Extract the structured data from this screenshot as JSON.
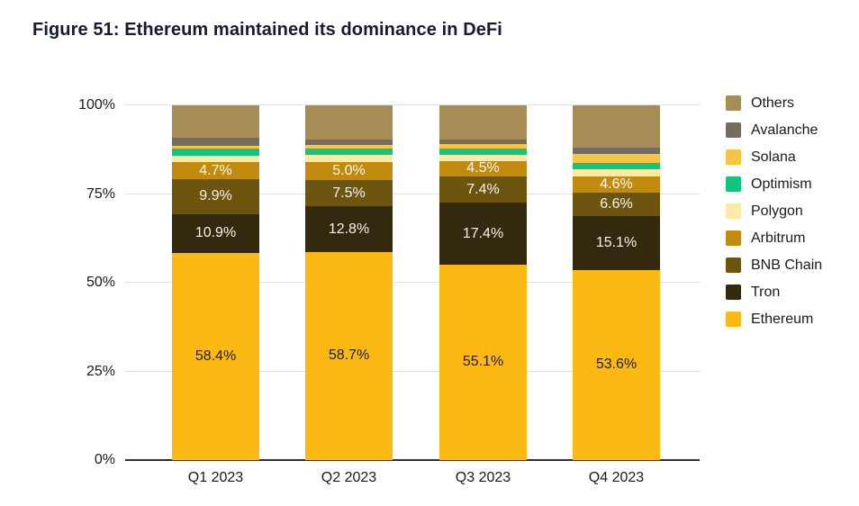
{
  "title": "Figure 51: Ethereum maintained its dominance in DeFi",
  "colors": {
    "title_text": "#161a2e",
    "gridline": "#e1e1e1",
    "axis_baseline": "#2f2f2f",
    "tick_text": "#191919",
    "background": "#ffffff"
  },
  "chart_data": {
    "type": "bar",
    "stacked": true,
    "unit": "%",
    "title": "Figure 51: Ethereum maintained its dominance in DeFi",
    "categories": [
      "Q1 2023",
      "Q2 2023",
      "Q3 2023",
      "Q4 2023"
    ],
    "series": [
      {
        "name": "Ethereum",
        "color": "#fcb813",
        "label_color": "#1f1f1f",
        "show_labels": true,
        "values": [
          58.4,
          58.7,
          55.1,
          53.6
        ],
        "labels": [
          "58.4%",
          "58.7%",
          "55.1%",
          "53.6%"
        ]
      },
      {
        "name": "Tron",
        "color": "#33290f",
        "label_color": "#f6f3ed",
        "show_labels": true,
        "values": [
          10.9,
          12.8,
          17.4,
          15.1
        ],
        "labels": [
          "10.9%",
          "12.8%",
          "17.4%",
          "15.1%"
        ]
      },
      {
        "name": "BNB Chain",
        "color": "#6e550f",
        "label_color": "#f6f3ed",
        "show_labels": true,
        "values": [
          9.9,
          7.5,
          7.4,
          6.6
        ],
        "labels": [
          "9.9%",
          "7.5%",
          "7.4%",
          "6.6%"
        ]
      },
      {
        "name": "Arbitrum",
        "color": "#c28a0e",
        "label_color": "#fdf9f2",
        "show_labels": true,
        "values": [
          4.7,
          5.0,
          4.5,
          4.6
        ],
        "labels": [
          "4.7%",
          "5.0%",
          "4.5%",
          "4.6%"
        ]
      },
      {
        "name": "Polygon",
        "color": "#fbe9a6",
        "show_labels": false,
        "values": [
          2.0,
          2.0,
          1.6,
          2.0
        ]
      },
      {
        "name": "Optimism",
        "color": "#12c57e",
        "show_labels": false,
        "values": [
          1.9,
          1.8,
          1.8,
          1.9
        ]
      },
      {
        "name": "Solana",
        "color": "#f8c443",
        "show_labels": false,
        "values": [
          0.9,
          1.0,
          1.2,
          2.4
        ]
      },
      {
        "name": "Avalanche",
        "color": "#746c5f",
        "show_labels": false,
        "values": [
          2.2,
          1.6,
          1.5,
          1.9
        ]
      },
      {
        "name": "Others",
        "color": "#a68c55",
        "show_labels": false,
        "values": [
          9.1,
          9.6,
          9.5,
          11.9
        ]
      }
    ],
    "y_ticks": [
      {
        "label": "0%",
        "value": 0
      },
      {
        "label": "25%",
        "value": 25
      },
      {
        "label": "50%",
        "value": 50
      },
      {
        "label": "75%",
        "value": 75
      },
      {
        "label": "100%",
        "value": 100
      }
    ],
    "ylim": [
      0,
      100
    ],
    "grid": true,
    "legend_position": "right",
    "legend": [
      "Others",
      "Avalanche",
      "Solana",
      "Optimism",
      "Polygon",
      "Arbitrum",
      "BNB Chain",
      "Tron",
      "Ethereum"
    ]
  }
}
